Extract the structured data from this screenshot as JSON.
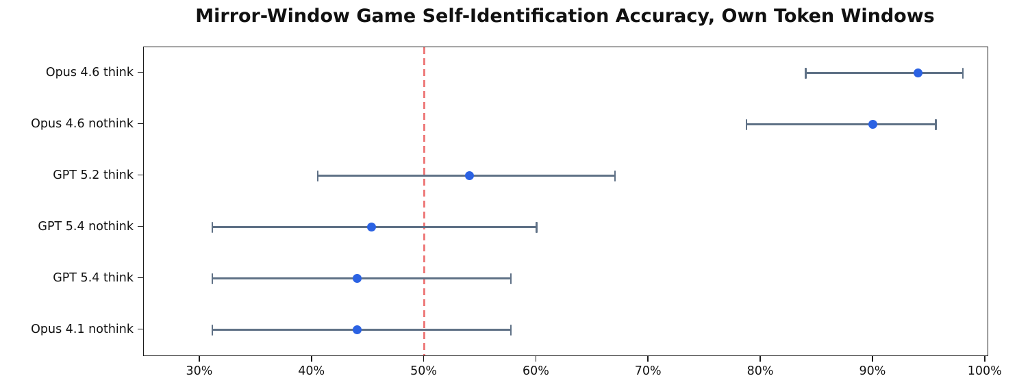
{
  "chart_data": {
    "type": "scatter",
    "orientation": "horizontal",
    "title": "Mirror-Window Game Self-Identification Accuracy, Own Token Windows",
    "xlabel": "",
    "ylabel": "",
    "xlim": [
      25,
      100.2
    ],
    "x_ticks": [
      30,
      40,
      50,
      60,
      70,
      80,
      90,
      100
    ],
    "x_tick_labels": [
      "30%",
      "40%",
      "50%",
      "60%",
      "70%",
      "80%",
      "90%",
      "100%"
    ],
    "grid": false,
    "legend_position": "none",
    "reference_line": {
      "x": 50,
      "style": "dashed",
      "color": "#ee7b7b"
    },
    "marker_color": "#2b62e3",
    "errorbar_color": "#5f7186",
    "categories": [
      "Opus 4.6 think",
      "Opus 4.6 nothink",
      "GPT 5.2 think",
      "GPT 5.4 nothink",
      "GPT 5.4 think",
      "Opus 4.1 nothink"
    ],
    "points": [
      {
        "label": "Opus 4.6 think",
        "value": 94.0,
        "ci_low": 84.0,
        "ci_high": 98.0
      },
      {
        "label": "Opus 4.6 nothink",
        "value": 90.0,
        "ci_low": 78.7,
        "ci_high": 95.6
      },
      {
        "label": "GPT 5.2 think",
        "value": 54.0,
        "ci_low": 40.5,
        "ci_high": 67.0
      },
      {
        "label": "GPT 5.4 nothink",
        "value": 45.3,
        "ci_low": 31.1,
        "ci_high": 60.0
      },
      {
        "label": "GPT 5.4 think",
        "value": 44.0,
        "ci_low": 31.1,
        "ci_high": 57.7
      },
      {
        "label": "Opus 4.1 nothink",
        "value": 44.0,
        "ci_low": 31.1,
        "ci_high": 57.7
      }
    ]
  }
}
